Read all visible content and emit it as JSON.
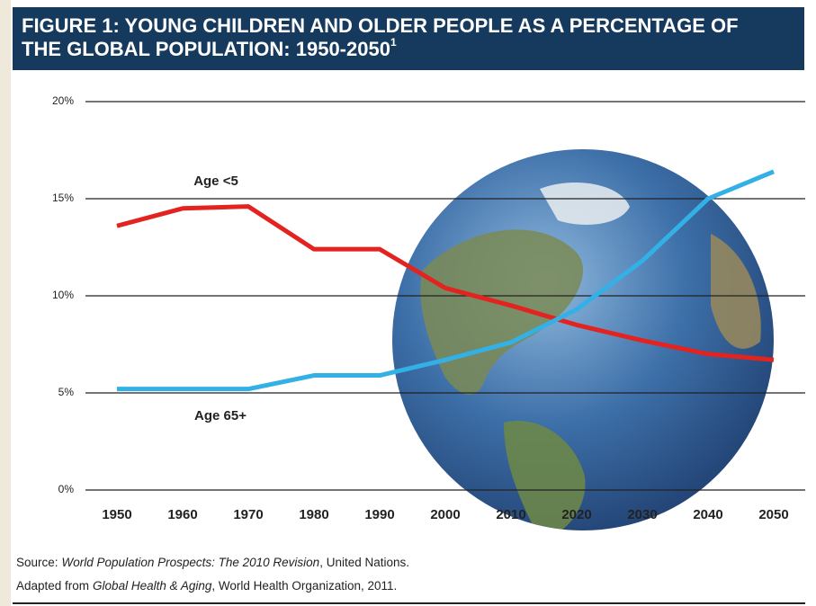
{
  "chart_data": {
    "type": "line",
    "title_lines": [
      "FIGURE 1: YOUNG CHILDREN AND OLDER PEOPLE AS A PERCENTAGE OF",
      "THE GLOBAL POPULATION: 1950-2050"
    ],
    "title_superscript": "1",
    "x": [
      1950,
      1960,
      1970,
      1980,
      1990,
      2000,
      2010,
      2020,
      2030,
      2040,
      2050
    ],
    "xlim": [
      1950,
      2050
    ],
    "xticks": [
      1950,
      1960,
      1970,
      1980,
      1990,
      2000,
      2010,
      2020,
      2030,
      2040,
      2050
    ],
    "ylim": [
      0,
      20
    ],
    "yticks": [
      {
        "value": 0,
        "label": "0%"
      },
      {
        "value": 5,
        "label": "5%"
      },
      {
        "value": 10,
        "label": "10%"
      },
      {
        "value": 15,
        "label": "15%"
      },
      {
        "value": 20,
        "label": "20%"
      }
    ],
    "grid": true,
    "series": [
      {
        "name": "Age <5",
        "color": "#e3231f",
        "values": [
          13.6,
          14.5,
          14.6,
          12.4,
          12.4,
          10.4,
          9.5,
          8.5,
          7.7,
          7.0,
          6.7
        ]
      },
      {
        "name": "Age 65+",
        "color": "#33b0e6",
        "values": [
          5.2,
          5.2,
          5.2,
          5.9,
          5.9,
          6.7,
          7.6,
          9.3,
          11.8,
          15.0,
          16.4
        ]
      }
    ]
  },
  "source": [
    {
      "label": "Source:",
      "work": "World Population Prospects: The 2010 Revision",
      "rest": ", United Nations."
    },
    {
      "label": "Adapted from",
      "work": "Global Health & Aging",
      "rest": ", World Health Organization, 2011."
    }
  ]
}
